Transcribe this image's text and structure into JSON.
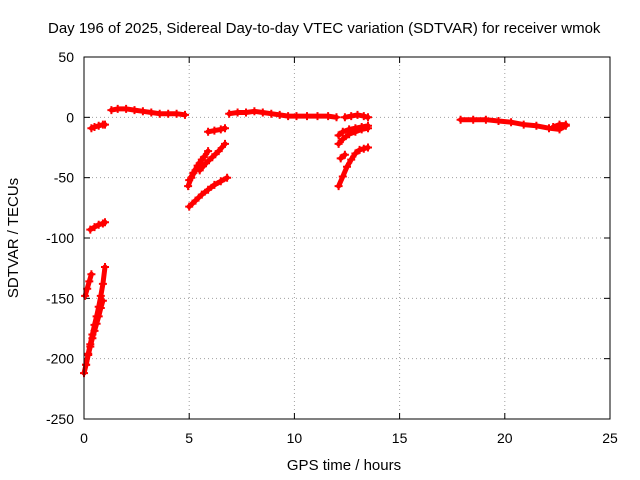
{
  "chart_data": {
    "type": "scatter",
    "title": "Day 196 of 2025, Sidereal Day-to-day VTEC variation (SDTVAR) for receiver wmok",
    "xlabel": "GPS time / hours",
    "ylabel": "SDTVAR / TECUs",
    "xlim": [
      0,
      25
    ],
    "ylim": [
      -250,
      50
    ],
    "xticks": [
      0,
      5,
      10,
      15,
      20,
      25
    ],
    "yticks": [
      -250,
      -200,
      -150,
      -100,
      -50,
      0,
      50
    ],
    "grid": true,
    "marker": "plus",
    "color": "#ff0000",
    "series": [
      {
        "name": "seg-1",
        "x": [
          0.0,
          0.1,
          0.2,
          0.3,
          0.4,
          0.5,
          0.6,
          0.7,
          0.8,
          0.9,
          1.0
        ],
        "y": [
          -212,
          -205,
          -196,
          -188,
          -180,
          -172,
          -165,
          -157,
          -148,
          -138,
          -124
        ]
      },
      {
        "name": "seg-2",
        "x": [
          0.1,
          0.2,
          0.3,
          0.4,
          0.5,
          0.6,
          0.7,
          0.8,
          0.9
        ],
        "y": [
          -205,
          -197,
          -190,
          -183,
          -177,
          -171,
          -165,
          -158,
          -152
        ]
      },
      {
        "name": "seg-3",
        "x": [
          0.05,
          0.15,
          0.25,
          0.35
        ],
        "y": [
          -148,
          -142,
          -136,
          -130
        ]
      },
      {
        "name": "seg-4",
        "x": [
          0.3,
          0.5,
          0.7,
          0.9,
          1.0
        ],
        "y": [
          -93,
          -91,
          -89,
          -88,
          -87
        ]
      },
      {
        "name": "seg-5",
        "x": [
          0.35,
          0.5,
          0.7,
          0.9,
          1.0
        ],
        "y": [
          -9,
          -8,
          -7,
          -6,
          -6
        ]
      },
      {
        "name": "seg-6",
        "x": [
          1.3,
          1.6,
          2.0,
          2.4,
          2.8,
          3.2,
          3.6,
          4.0,
          4.4,
          4.8
        ],
        "y": [
          6,
          7,
          7,
          6,
          5,
          4,
          3,
          3,
          3,
          2
        ]
      },
      {
        "name": "seg-7",
        "x": [
          4.95,
          5.1,
          5.3,
          5.5,
          5.7,
          5.9
        ],
        "y": [
          -57,
          -50,
          -44,
          -38,
          -33,
          -28
        ]
      },
      {
        "name": "seg-8",
        "x": [
          5.0,
          5.2,
          5.4,
          5.6
        ],
        "y": [
          -52,
          -46,
          -40,
          -35
        ]
      },
      {
        "name": "seg-9",
        "x": [
          5.0,
          5.3,
          5.6,
          5.9,
          6.2,
          6.5,
          6.8
        ],
        "y": [
          -74,
          -69,
          -64,
          -60,
          -56,
          -53,
          -50
        ]
      },
      {
        "name": "seg-10",
        "x": [
          5.5,
          5.8,
          6.1,
          6.4,
          6.7
        ],
        "y": [
          -44,
          -38,
          -33,
          -28,
          -22
        ]
      },
      {
        "name": "seg-11",
        "x": [
          5.9,
          6.2,
          6.5,
          6.7
        ],
        "y": [
          -12,
          -11,
          -10,
          -9
        ]
      },
      {
        "name": "seg-12",
        "x": [
          6.9,
          7.3,
          7.7,
          8.1,
          8.5,
          8.9,
          9.3,
          9.7,
          10.1,
          10.6,
          11.1,
          11.6,
          12.0
        ],
        "y": [
          3,
          4,
          4,
          5,
          4,
          3,
          2,
          1,
          1,
          1,
          1,
          1,
          0
        ]
      },
      {
        "name": "seg-13",
        "x": [
          12.1,
          12.3,
          12.5,
          12.7,
          12.9,
          13.1,
          13.3,
          13.5
        ],
        "y": [
          -57,
          -49,
          -41,
          -35,
          -30,
          -27,
          -26,
          -25
        ]
      },
      {
        "name": "seg-14",
        "x": [
          12.1,
          12.3,
          12.6,
          12.9,
          13.2,
          13.5
        ],
        "y": [
          -22,
          -18,
          -14,
          -12,
          -10,
          -9
        ]
      },
      {
        "name": "seg-15",
        "x": [
          12.1,
          12.3,
          12.6,
          12.9,
          13.2,
          13.5
        ],
        "y": [
          -15,
          -12,
          -10,
          -9,
          -8,
          -7
        ]
      },
      {
        "name": "seg-16",
        "x": [
          12.2,
          12.4
        ],
        "y": [
          -34,
          -31
        ]
      },
      {
        "name": "seg-17",
        "x": [
          12.4,
          12.7,
          13.0,
          13.3,
          13.5
        ],
        "y": [
          0,
          1,
          2,
          1,
          0
        ]
      },
      {
        "name": "seg-18",
        "x": [
          17.9,
          18.5,
          19.1,
          19.7,
          20.3,
          20.9,
          21.5,
          22.1,
          22.6,
          22.9
        ],
        "y": [
          -2,
          -2,
          -2,
          -3,
          -4,
          -6,
          -7,
          -9,
          -10,
          -7
        ]
      },
      {
        "name": "seg-19",
        "x": [
          22.3,
          22.6,
          22.9
        ],
        "y": [
          -8,
          -6,
          -6
        ]
      }
    ]
  }
}
